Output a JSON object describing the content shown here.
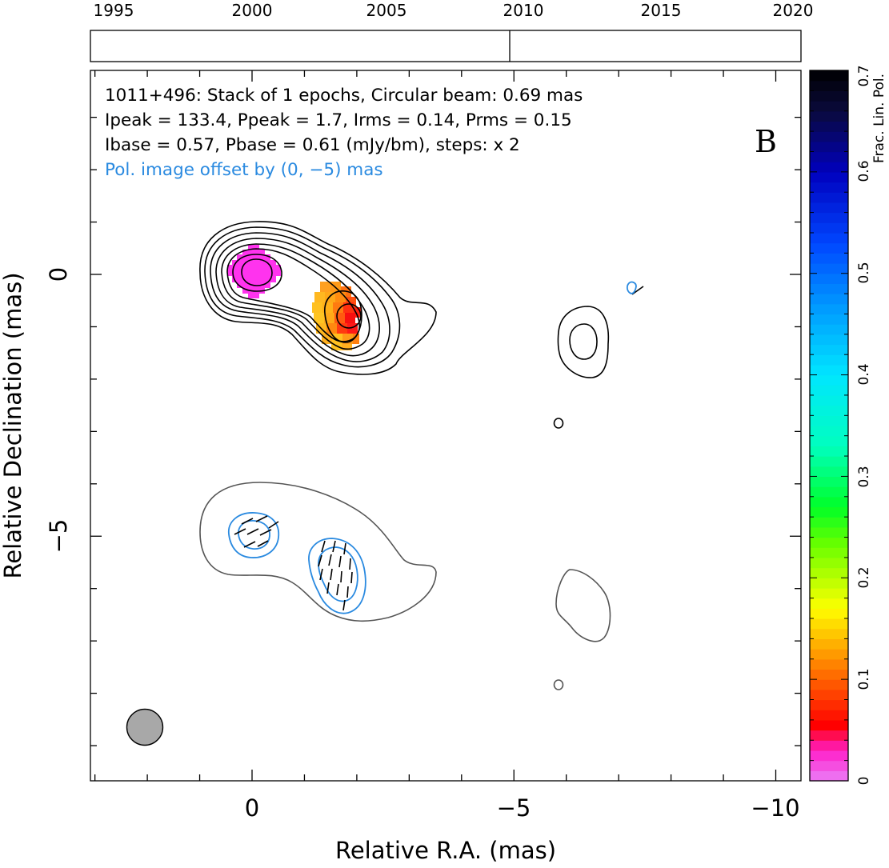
{
  "chart_data": {
    "type": "heatmap",
    "source_name": "1011+496",
    "panel_label": "B",
    "annotations": [
      "1011+496: Stack of 1 epochs, Circular beam: 0.69 mas",
      "Ipeak = 133.4, Ppeak = 1.7, Irms = 0.14, Prms = 0.15",
      "Ibase = 0.57, Pbase = 0.61 (mJy/bm), steps: x 2",
      "Pol. image offset by (0, −5) mas"
    ],
    "xlabel": "Relative R.A. (mas)",
    "ylabel": "Relative Declination (mas)",
    "xlim": [
      3,
      -10.5
    ],
    "ylim": [
      -9.8,
      4
    ],
    "x_ticks": [
      0,
      -5,
      -10
    ],
    "x_tick_labels": [
      "0",
      "−5",
      "−10"
    ],
    "y_ticks": [
      0,
      -5
    ],
    "y_tick_labels": [
      "0",
      "−5"
    ],
    "colorbar": {
      "label": "Frac. Lin. Pol.",
      "range": [
        0,
        0.7
      ],
      "ticks": [
        0,
        0.1,
        0.2,
        0.3,
        0.4,
        0.5,
        0.6,
        0.7
      ],
      "tick_labels": [
        "0",
        "0.1",
        "0.2",
        "0.3",
        "0.4",
        "0.5",
        "0.6",
        "0.7"
      ]
    },
    "epoch_axis": {
      "range": [
        1993.5,
        2021
      ],
      "ticks": [
        1995,
        2000,
        2005,
        2010,
        2015,
        2020
      ],
      "tick_labels": [
        "1995",
        "2000",
        "2005",
        "2010",
        "2015",
        "2020"
      ],
      "epochs": [
        2009.5
      ]
    },
    "beam": {
      "diameter_mas": 0.69,
      "x": 2.05,
      "y": -8.8,
      "color": "#a8a8a8"
    },
    "stokes_i_contours": {
      "color": "#000000",
      "core": {
        "x": 0,
        "y": 0
      },
      "jet_knot": {
        "x": -1.8,
        "y": -0.8
      },
      "outer_feature": {
        "x": -6.3,
        "y": -1.3
      }
    },
    "pol_contours": {
      "color": "#2a8ae0",
      "offset_mas": [
        0,
        -5
      ]
    },
    "frac_pol_pixels": [
      {
        "x": 0.0,
        "y": 0.0,
        "value": 0.01
      },
      {
        "x": -1.5,
        "y": -0.6,
        "value": 0.12
      },
      {
        "x": -1.7,
        "y": -0.8,
        "value": 0.08
      },
      {
        "x": -1.9,
        "y": -0.9,
        "value": 0.05
      },
      {
        "x": -1.8,
        "y": -1.3,
        "value": 0.13
      }
    ]
  }
}
